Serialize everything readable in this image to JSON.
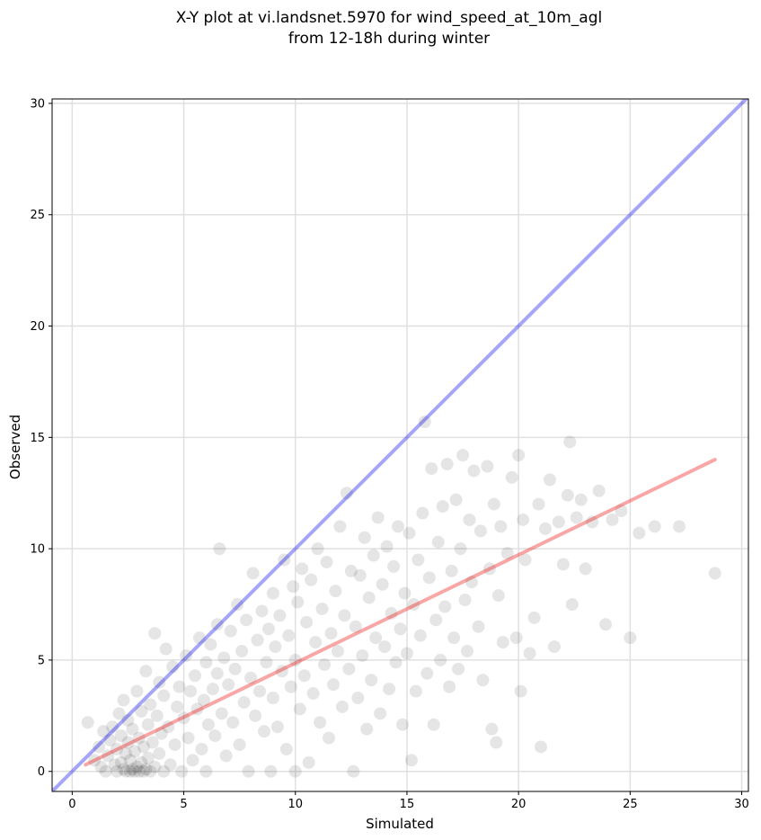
{
  "chart_data": {
    "type": "scatter",
    "title": [
      "X-Y plot at vi.landsnet.5970 for wind_speed_at_10m_agl",
      "from 12-18h during winter"
    ],
    "xlabel": "Simulated",
    "ylabel": "Observed",
    "xlim": [
      -0.9,
      30.3
    ],
    "ylim": [
      -0.9,
      30.2
    ],
    "xticks": [
      0,
      5,
      10,
      15,
      20,
      25,
      30
    ],
    "yticks": [
      0,
      5,
      10,
      15,
      20,
      25,
      30
    ],
    "grid": true,
    "colors": {
      "points": "#000000",
      "identity_line": "#0000ee",
      "fit_line": "#ee0000",
      "grid": "#e0e0e0"
    },
    "identity_line": {
      "x": [
        -0.9,
        30.3
      ],
      "y": [
        -0.9,
        30.3
      ]
    },
    "fit_line": {
      "x": [
        0.6,
        28.8
      ],
      "y": [
        0.3,
        14.0
      ]
    },
    "points": [
      [
        0.7,
        2.2
      ],
      [
        1.0,
        0.5
      ],
      [
        1.2,
        1.1
      ],
      [
        1.3,
        0.2
      ],
      [
        1.4,
        1.8
      ],
      [
        1.5,
        0.0
      ],
      [
        1.6,
        0.7
      ],
      [
        1.7,
        1.4
      ],
      [
        1.8,
        2.0
      ],
      [
        1.9,
        0.3
      ],
      [
        2.0,
        0.0
      ],
      [
        2.0,
        1.0
      ],
      [
        2.1,
        2.6
      ],
      [
        2.2,
        0.4
      ],
      [
        2.2,
        1.6
      ],
      [
        2.3,
        0.1
      ],
      [
        2.3,
        3.2
      ],
      [
        2.4,
        0.0
      ],
      [
        2.4,
        0.8
      ],
      [
        2.5,
        1.3
      ],
      [
        2.5,
        2.3
      ],
      [
        2.6,
        0.0
      ],
      [
        2.6,
        0.5
      ],
      [
        2.7,
        0.1
      ],
      [
        2.7,
        1.9
      ],
      [
        2.8,
        0.0
      ],
      [
        2.8,
        0.9
      ],
      [
        2.9,
        3.6
      ],
      [
        2.9,
        0.2
      ],
      [
        3.0,
        0.0
      ],
      [
        3.0,
        1.5
      ],
      [
        3.1,
        0.4
      ],
      [
        3.1,
        2.7
      ],
      [
        3.2,
        0.0
      ],
      [
        3.2,
        1.1
      ],
      [
        3.3,
        0.1
      ],
      [
        3.3,
        4.5
      ],
      [
        3.4,
        0.6
      ],
      [
        3.4,
        2.1
      ],
      [
        3.5,
        0.0
      ],
      [
        3.5,
        3.0
      ],
      [
        3.6,
        1.3
      ],
      [
        3.7,
        6.2
      ],
      [
        3.7,
        0.2
      ],
      [
        3.8,
        2.5
      ],
      [
        3.9,
        0.8
      ],
      [
        3.9,
        4.0
      ],
      [
        4.0,
        1.7
      ],
      [
        4.1,
        0.0
      ],
      [
        4.1,
        3.4
      ],
      [
        4.2,
        5.5
      ],
      [
        4.3,
        2.0
      ],
      [
        4.4,
        0.3
      ],
      [
        4.5,
        4.7
      ],
      [
        4.6,
        1.2
      ],
      [
        4.7,
        2.9
      ],
      [
        4.8,
        3.8
      ],
      [
        4.9,
        0.0
      ],
      [
        5.0,
        2.4
      ],
      [
        5.1,
        5.2
      ],
      [
        5.2,
        1.5
      ],
      [
        5.3,
        3.6
      ],
      [
        5.4,
        0.5
      ],
      [
        5.5,
        4.3
      ],
      [
        5.6,
        2.8
      ],
      [
        5.7,
        6.0
      ],
      [
        5.8,
        1.0
      ],
      [
        5.9,
        3.2
      ],
      [
        6.0,
        4.9
      ],
      [
        6.0,
        0.0
      ],
      [
        6.1,
        2.1
      ],
      [
        6.2,
        5.7
      ],
      [
        6.3,
        3.7
      ],
      [
        6.4,
        1.6
      ],
      [
        6.5,
        6.6
      ],
      [
        6.5,
        4.4
      ],
      [
        6.6,
        10.0
      ],
      [
        6.7,
        2.6
      ],
      [
        6.8,
        5.1
      ],
      [
        6.9,
        0.7
      ],
      [
        7.0,
        3.9
      ],
      [
        7.1,
        6.3
      ],
      [
        7.2,
        2.2
      ],
      [
        7.3,
        4.6
      ],
      [
        7.4,
        7.5
      ],
      [
        7.5,
        1.2
      ],
      [
        7.6,
        5.4
      ],
      [
        7.7,
        3.1
      ],
      [
        7.8,
        6.8
      ],
      [
        7.9,
        0.0
      ],
      [
        8.0,
        4.2
      ],
      [
        8.1,
        8.9
      ],
      [
        8.2,
        2.5
      ],
      [
        8.3,
        5.9
      ],
      [
        8.4,
        3.6
      ],
      [
        8.5,
        7.2
      ],
      [
        8.6,
        1.8
      ],
      [
        8.7,
        4.9
      ],
      [
        8.8,
        6.4
      ],
      [
        8.9,
        0.0
      ],
      [
        9.0,
        3.3
      ],
      [
        9.0,
        8.0
      ],
      [
        9.1,
        5.6
      ],
      [
        9.2,
        2.0
      ],
      [
        9.3,
        7.0
      ],
      [
        9.4,
        4.5
      ],
      [
        9.5,
        9.5
      ],
      [
        9.6,
        1.0
      ],
      [
        9.7,
        6.1
      ],
      [
        9.8,
        3.8
      ],
      [
        9.9,
        8.3
      ],
      [
        10.0,
        5.0
      ],
      [
        10.0,
        0.0
      ],
      [
        10.1,
        7.6
      ],
      [
        10.2,
        2.8
      ],
      [
        10.3,
        9.1
      ],
      [
        10.4,
        4.3
      ],
      [
        10.5,
        6.7
      ],
      [
        10.6,
        0.4
      ],
      [
        10.7,
        8.6
      ],
      [
        10.8,
        3.5
      ],
      [
        10.9,
        5.8
      ],
      [
        11.0,
        10.0
      ],
      [
        11.1,
        2.2
      ],
      [
        11.2,
        7.3
      ],
      [
        11.3,
        4.8
      ],
      [
        11.4,
        9.4
      ],
      [
        11.5,
        1.5
      ],
      [
        11.6,
        6.2
      ],
      [
        11.7,
        3.9
      ],
      [
        11.8,
        8.1
      ],
      [
        11.9,
        5.4
      ],
      [
        12.0,
        11.0
      ],
      [
        12.1,
        2.9
      ],
      [
        12.2,
        7.0
      ],
      [
        12.3,
        12.5
      ],
      [
        12.4,
        4.6
      ],
      [
        12.5,
        9.0
      ],
      [
        12.6,
        0.0
      ],
      [
        12.7,
        6.5
      ],
      [
        12.8,
        3.3
      ],
      [
        12.9,
        8.8
      ],
      [
        13.0,
        5.2
      ],
      [
        13.1,
        10.5
      ],
      [
        13.2,
        1.9
      ],
      [
        13.3,
        7.8
      ],
      [
        13.4,
        4.1
      ],
      [
        13.5,
        9.7
      ],
      [
        13.6,
        6.0
      ],
      [
        13.7,
        11.4
      ],
      [
        13.8,
        2.6
      ],
      [
        13.9,
        8.4
      ],
      [
        14.0,
        5.6
      ],
      [
        14.1,
        10.1
      ],
      [
        14.2,
        3.7
      ],
      [
        14.3,
        7.1
      ],
      [
        14.4,
        9.2
      ],
      [
        14.5,
        4.9
      ],
      [
        14.6,
        11.0
      ],
      [
        14.7,
        6.4
      ],
      [
        14.8,
        2.1
      ],
      [
        14.9,
        8.0
      ],
      [
        15.0,
        5.3
      ],
      [
        15.1,
        10.7
      ],
      [
        15.2,
        0.5
      ],
      [
        15.3,
        7.5
      ],
      [
        15.4,
        3.6
      ],
      [
        15.5,
        9.5
      ],
      [
        15.6,
        6.1
      ],
      [
        15.7,
        11.6
      ],
      [
        15.8,
        15.7
      ],
      [
        15.9,
        4.4
      ],
      [
        16.0,
        8.7
      ],
      [
        16.1,
        13.6
      ],
      [
        16.2,
        2.1
      ],
      [
        16.3,
        6.8
      ],
      [
        16.4,
        10.3
      ],
      [
        16.5,
        5.0
      ],
      [
        16.6,
        11.9
      ],
      [
        16.7,
        7.4
      ],
      [
        16.8,
        13.8
      ],
      [
        16.9,
        3.8
      ],
      [
        17.0,
        9.0
      ],
      [
        17.1,
        6.0
      ],
      [
        17.2,
        12.2
      ],
      [
        17.3,
        4.6
      ],
      [
        17.4,
        10.0
      ],
      [
        17.5,
        14.2
      ],
      [
        17.6,
        7.7
      ],
      [
        17.7,
        5.4
      ],
      [
        17.8,
        11.3
      ],
      [
        17.9,
        8.5
      ],
      [
        18.0,
        13.5
      ],
      [
        18.2,
        6.5
      ],
      [
        18.3,
        10.8
      ],
      [
        18.4,
        4.1
      ],
      [
        18.6,
        13.7
      ],
      [
        18.7,
        9.1
      ],
      [
        18.8,
        1.9
      ],
      [
        18.9,
        12.0
      ],
      [
        19.0,
        1.3
      ],
      [
        19.1,
        7.9
      ],
      [
        19.2,
        11.0
      ],
      [
        19.3,
        5.8
      ],
      [
        19.5,
        9.8
      ],
      [
        19.7,
        13.2
      ],
      [
        19.9,
        6.0
      ],
      [
        20.0,
        14.2
      ],
      [
        20.1,
        3.6
      ],
      [
        20.2,
        11.3
      ],
      [
        20.3,
        9.5
      ],
      [
        20.5,
        5.3
      ],
      [
        20.7,
        6.9
      ],
      [
        20.9,
        12.0
      ],
      [
        21.0,
        1.1
      ],
      [
        21.2,
        10.9
      ],
      [
        21.4,
        13.1
      ],
      [
        21.6,
        5.6
      ],
      [
        21.8,
        11.2
      ],
      [
        22.0,
        9.3
      ],
      [
        22.2,
        12.4
      ],
      [
        22.3,
        14.8
      ],
      [
        22.4,
        7.5
      ],
      [
        22.6,
        11.4
      ],
      [
        22.8,
        12.2
      ],
      [
        23.0,
        9.1
      ],
      [
        23.3,
        11.2
      ],
      [
        23.6,
        12.6
      ],
      [
        23.9,
        6.6
      ],
      [
        24.2,
        11.3
      ],
      [
        24.6,
        11.7
      ],
      [
        25.0,
        6.0
      ],
      [
        25.4,
        10.7
      ],
      [
        26.1,
        11.0
      ],
      [
        27.2,
        11.0
      ],
      [
        28.8,
        8.9
      ]
    ]
  }
}
